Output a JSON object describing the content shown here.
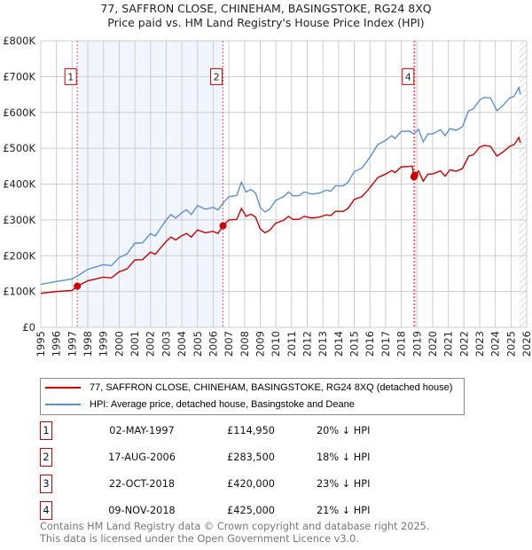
{
  "chart_data": {
    "type": "line",
    "title": "77, SAFFRON CLOSE, CHINEHAM, BASINGSTOKE, RG24 8XQ",
    "subtitle": "Price paid vs. HM Land Registry's House Price Index (HPI)",
    "xlim": [
      1995,
      2026
    ],
    "ylim": [
      0,
      800000
    ],
    "y_ticks": [
      {
        "v": 0,
        "label": "£0"
      },
      {
        "v": 100000,
        "label": "£100K"
      },
      {
        "v": 200000,
        "label": "£200K"
      },
      {
        "v": 300000,
        "label": "£300K"
      },
      {
        "v": 400000,
        "label": "£400K"
      },
      {
        "v": 500000,
        "label": "£500K"
      },
      {
        "v": 600000,
        "label": "£600K"
      },
      {
        "v": 700000,
        "label": "£700K"
      },
      {
        "v": 800000,
        "label": "£800K"
      }
    ],
    "x_ticks": [
      "1995",
      "1996",
      "1997",
      "1998",
      "1999",
      "2000",
      "2001",
      "2002",
      "2003",
      "2004",
      "2005",
      "2006",
      "2007",
      "2008",
      "2009",
      "2010",
      "2011",
      "2012",
      "2013",
      "2014",
      "2015",
      "2016",
      "2017",
      "2018",
      "2019",
      "2020",
      "2021",
      "2022",
      "2023",
      "2024",
      "2025",
      "2026"
    ],
    "grid": true,
    "shaded_range": [
      1997.33,
      2006.63
    ],
    "hatched_from": 2025.55,
    "series": [
      {
        "name": "77, SAFFRON CLOSE, CHINEHAM, BASINGSTOKE, RG24 8XQ (detached house)",
        "color": "#cc0000",
        "x": [
          1995,
          1996,
          1997,
          1997.33,
          1998,
          1999,
          1999.5,
          2000,
          2000.5,
          2001,
          2001.5,
          2002,
          2002.3,
          2003,
          2003.3,
          2003.6,
          2004,
          2004.3,
          2004.6,
          2005,
          2005.5,
          2006,
          2006.3,
          2006.63,
          2007,
          2007.5,
          2007.8,
          2008.1,
          2008.4,
          2008.7,
          2009,
          2009.3,
          2009.6,
          2010,
          2010.5,
          2010.8,
          2011.1,
          2011.5,
          2011.8,
          2012.3,
          2012.8,
          2013.2,
          2013.5,
          2013.8,
          2014.3,
          2014.6,
          2015,
          2015.5,
          2016,
          2016.5,
          2017,
          2017.4,
          2017.6,
          2018,
          2018.5,
          2018.7,
          2018.81,
          2019.1,
          2019.4,
          2019.7,
          2020,
          2020.5,
          2020.8,
          2021.1,
          2021.5,
          2021.9,
          2022.3,
          2022.6,
          2023,
          2023.3,
          2023.7,
          2024.1,
          2024.5,
          2024.9,
          2025.2,
          2025.5,
          2025.6
        ],
        "y": [
          95000,
          100000,
          103000,
          114950,
          130000,
          140000,
          138000,
          155000,
          163000,
          188000,
          189000,
          210000,
          204000,
          240000,
          252000,
          244000,
          256000,
          262000,
          252000,
          272000,
          264000,
          268000,
          262000,
          283500,
          300000,
          301000,
          332000,
          310000,
          316000,
          308000,
          275000,
          264000,
          271000,
          291000,
          299000,
          310000,
          301000,
          302000,
          310000,
          305000,
          308000,
          314000,
          312000,
          324000,
          324000,
          332000,
          357000,
          365000,
          390000,
          418000,
          428000,
          438000,
          432000,
          448000,
          449000,
          450000,
          420000,
          437000,
          408000,
          428000,
          428000,
          437000,
          422000,
          440000,
          436000,
          443000,
          478000,
          482000,
          503000,
          508000,
          505000,
          478000,
          490000,
          505000,
          510000,
          530000,
          515000
        ]
      },
      {
        "name": "HPI: Average price, detached house, Basingstoke and Deane",
        "color": "#5b8fd4",
        "x": [
          1995,
          1996,
          1997,
          1997.5,
          1998,
          1999,
          1999.5,
          2000,
          2000.5,
          2001,
          2001.5,
          2002,
          2002.3,
          2003,
          2003.3,
          2003.6,
          2004,
          2004.3,
          2004.6,
          2005,
          2005.5,
          2006,
          2006.3,
          2006.7,
          2007,
          2007.5,
          2007.8,
          2008.1,
          2008.4,
          2008.7,
          2009,
          2009.3,
          2009.6,
          2010,
          2010.5,
          2010.8,
          2011.1,
          2011.5,
          2011.8,
          2012.3,
          2012.8,
          2013.2,
          2013.5,
          2013.8,
          2014.3,
          2014.6,
          2015,
          2015.5,
          2016,
          2016.5,
          2017,
          2017.4,
          2017.6,
          2018,
          2018.5,
          2018.8,
          2019.1,
          2019.4,
          2019.7,
          2020,
          2020.5,
          2020.8,
          2021.1,
          2021.5,
          2021.9,
          2022.3,
          2022.6,
          2023,
          2023.3,
          2023.7,
          2024.1,
          2024.5,
          2024.9,
          2025.2,
          2025.5,
          2025.6
        ],
        "y": [
          120000,
          128000,
          135000,
          148000,
          162000,
          175000,
          172000,
          195000,
          205000,
          235000,
          236000,
          262000,
          255000,
          300000,
          315000,
          305000,
          320000,
          328000,
          315000,
          340000,
          330000,
          335000,
          328000,
          350000,
          365000,
          368000,
          405000,
          378000,
          385000,
          375000,
          335000,
          322000,
          330000,
          355000,
          365000,
          378000,
          367000,
          368000,
          378000,
          372000,
          375000,
          383000,
          380000,
          395000,
          395000,
          405000,
          435000,
          445000,
          475000,
          510000,
          522000,
          535000,
          527000,
          547000,
          548000,
          540000,
          553000,
          518000,
          540000,
          540000,
          552000,
          535000,
          555000,
          550000,
          560000,
          605000,
          610000,
          635000,
          642000,
          640000,
          605000,
          620000,
          640000,
          645000,
          670000,
          650000
        ]
      }
    ],
    "sales": [
      {
        "n": "1",
        "x": 1997.33,
        "y": 114950,
        "date": "02-MAY-1997",
        "price": "£114,950",
        "hpi": "20% ↓ HPI",
        "box": true
      },
      {
        "n": "2",
        "x": 2006.63,
        "y": 283500,
        "date": "17-AUG-2006",
        "price": "£283,500",
        "hpi": "18% ↓ HPI",
        "box": true
      },
      {
        "n": "3",
        "x": 2018.81,
        "y": 420000,
        "date": "22-OCT-2018",
        "price": "£420,000",
        "hpi": "23% ↓ HPI",
        "box": false
      },
      {
        "n": "4",
        "x": 2018.86,
        "y": 425000,
        "date": "09-NOV-2018",
        "price": "£425,000",
        "hpi": "21% ↓ HPI",
        "box": true
      }
    ]
  },
  "footer": {
    "line1": "Contains HM Land Registry data © Crown copyright and database right 2025.",
    "line2": "This data is licensed under the Open Government Licence v3.0."
  }
}
